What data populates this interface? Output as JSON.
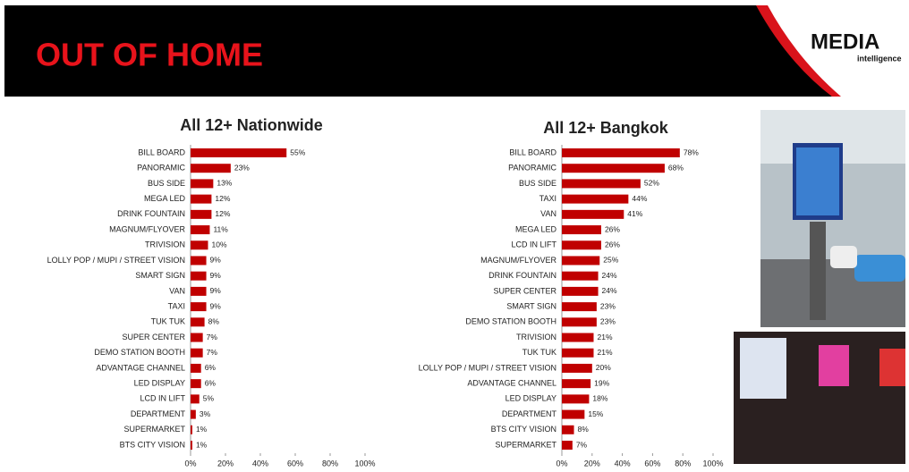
{
  "header": {
    "title": "OUT OF HOME",
    "logo": "MEDIA",
    "logo_sub": "intelligence"
  },
  "chart_data": [
    {
      "type": "bar",
      "orientation": "horizontal",
      "title": "All 12+ Nationwide",
      "color": "#c00000",
      "categories": [
        "BILL BOARD",
        "PANORAMIC",
        "BUS SIDE",
        "MEGA LED",
        "DRINK FOUNTAIN",
        "MAGNUM/FLYOVER",
        "TRIVISION",
        "LOLLY POP / MUPI / STREET VISION",
        "SMART SIGN",
        "VAN",
        "TAXI",
        "TUK TUK",
        "SUPER CENTER",
        "DEMO STATION BOOTH",
        "ADVANTAGE CHANNEL",
        "LED DISPLAY",
        "LCD IN LIFT",
        "DEPARTMENT",
        "SUPERMARKET",
        "BTS CITY VISION"
      ],
      "values": [
        55,
        23,
        13,
        12,
        12,
        11,
        10,
        9,
        9,
        9,
        9,
        8,
        7,
        7,
        6,
        6,
        5,
        3,
        1,
        1
      ],
      "value_labels": [
        "55%",
        "23%",
        "13%",
        "12%",
        "12%",
        "11%",
        "10%",
        "9%",
        "9%",
        "9%",
        "9%",
        "8%",
        "7%",
        "7%",
        "6%",
        "6%",
        "5%",
        "3%",
        "1%",
        "1%"
      ],
      "xlim": [
        0,
        100
      ],
      "xticks": [
        {
          "value": 0,
          "label": "0%"
        },
        {
          "value": 20,
          "label": "20%"
        },
        {
          "value": 40,
          "label": "40%"
        },
        {
          "value": 60,
          "label": "60%"
        },
        {
          "value": 80,
          "label": "80%"
        },
        {
          "value": 100,
          "label": "100%"
        }
      ]
    },
    {
      "type": "bar",
      "orientation": "horizontal",
      "title": "All 12+ Bangkok",
      "color": "#c00000",
      "categories": [
        "BILL BOARD",
        "PANORAMIC",
        "BUS SIDE",
        "TAXI",
        "VAN",
        "MEGA LED",
        "LCD IN LIFT",
        "MAGNUM/FLYOVER",
        "DRINK FOUNTAIN",
        "SUPER CENTER",
        "SMART SIGN",
        "DEMO STATION BOOTH",
        "TRIVISION",
        "TUK TUK",
        "LOLLY POP / MUPI / STREET VISION",
        "ADVANTAGE CHANNEL",
        "LED DISPLAY",
        "DEPARTMENT",
        "BTS CITY VISION",
        "SUPERMARKET"
      ],
      "values": [
        78,
        68,
        52,
        44,
        41,
        26,
        26,
        25,
        24,
        24,
        23,
        23,
        21,
        21,
        20,
        19,
        18,
        15,
        8,
        7
      ],
      "value_labels": [
        "78%",
        "68%",
        "52%",
        "44%",
        "41%",
        "26%",
        "26%",
        "25%",
        "24%",
        "24%",
        "23%",
        "23%",
        "21%",
        "21%",
        "20%",
        "19%",
        "18%",
        "15%",
        "8%",
        "7%"
      ],
      "xlim": [
        0,
        100
      ],
      "xticks": [
        {
          "value": 0,
          "label": "0%"
        },
        {
          "value": 20,
          "label": "20%"
        },
        {
          "value": 40,
          "label": "40%"
        },
        {
          "value": 60,
          "label": "60%"
        },
        {
          "value": 80,
          "label": "80%"
        },
        {
          "value": 100,
          "label": "100%"
        }
      ]
    }
  ]
}
